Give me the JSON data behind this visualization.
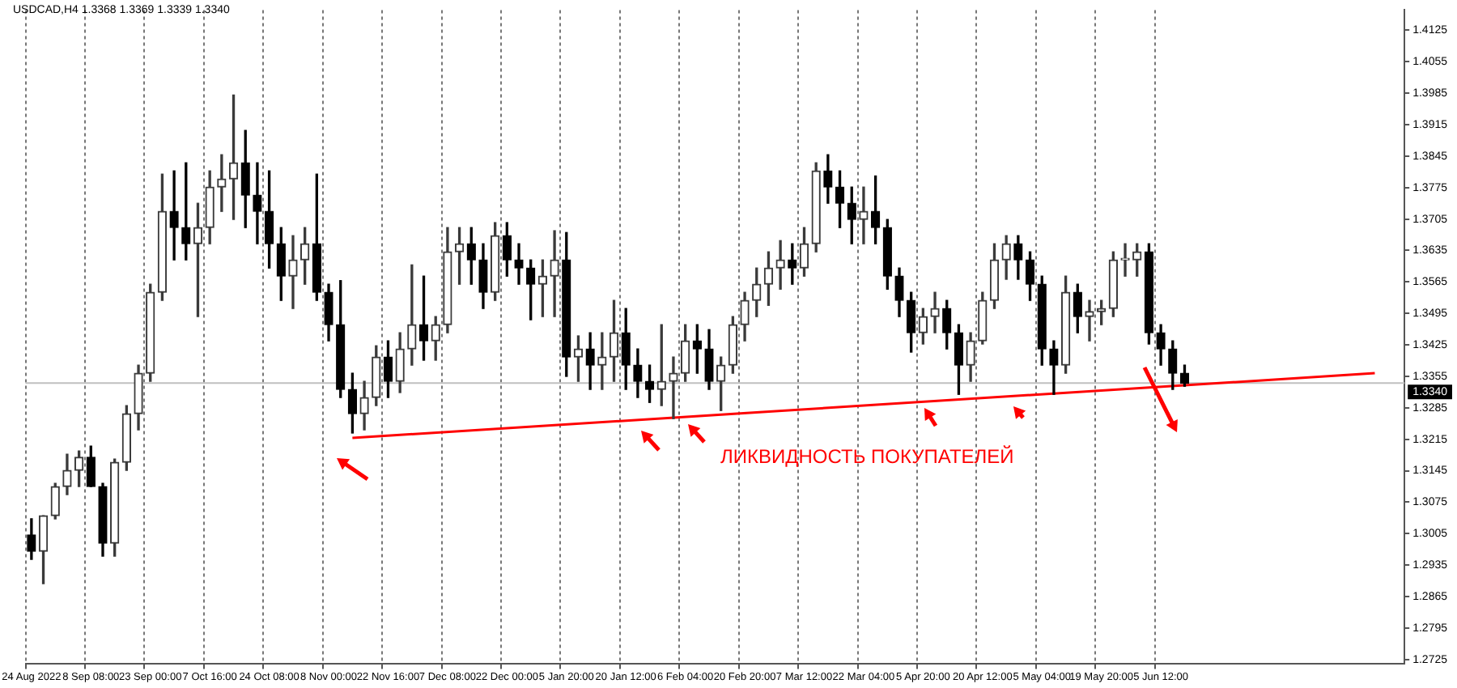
{
  "chart_data": {
    "type": "candlestick",
    "title": "USDCAD,H4  1.3368 1.3369 1.3339 1.3340",
    "colors": [
      "#000000",
      "#3a3a3a",
      "#3a3a3a",
      "#3a3a3a",
      "#3a3a3a",
      "#000000",
      "#000000",
      "#3a3a3a",
      "#3a3a3a",
      "#3a3a3a",
      "#3a3a3a",
      "#3a3a3a",
      "#000000",
      "#000000",
      "#3a3a3a",
      "#3a3a3a",
      "#3a3a3a",
      "#3a3a3a",
      "#000000",
      "#000000",
      "#000000",
      "#000000",
      "#3a3a3a",
      "#3a3a3a",
      "#000000",
      "#000000",
      "#000000",
      "#000000",
      "#3a3a3a",
      "#3a3a3a",
      "#000000",
      "#3a3a3a",
      "#3a3a3a",
      "#000000",
      "#3a3a3a",
      "#3a3a3a",
      "#3a3a3a",
      "#000000",
      "#000000",
      "#3a3a3a",
      "#000000",
      "#000000",
      "#000000",
      "#3a3a3a",
      "#3a3a3a",
      "#000000",
      "#3a3a3a",
      "#000000",
      "#3a3a3a",
      "#3a3a3a",
      "#000000",
      "#000000",
      "#000000",
      "#3a3a3a",
      "#3a3a3a",
      "#3a3a3a",
      "#000000",
      "#000000",
      "#3a3a3a",
      "#3a3a3a",
      "#3a3a3a",
      "#3a3a3a",
      "#3a3a3a",
      "#3a3a3a",
      "#000000",
      "#3a3a3a",
      "#3a3a3a",
      "#000000",
      "#000000",
      "#000000",
      "#3a3a3a",
      "#000000",
      "#000000",
      "#000000",
      "#000000",
      "#3a3a3a",
      "#3a3a3a",
      "#000000",
      "#000000",
      "#3a3a3a",
      "#3a3a3a",
      "#3a3a3a",
      "#3a3a3a",
      "#000000",
      "#000000",
      "#000000",
      "#000000",
      "#3a3a3a",
      "#000000",
      "#3a3a3a",
      "#3a3a3a",
      "#3a3a3a",
      "#3a3a3a",
      "#3a3a3a",
      "#000000",
      "#000000",
      "#000000",
      "#000000",
      null,
      null,
      null,
      null,
      null,
      null,
      null,
      null,
      null,
      null,
      null,
      null,
      null,
      null,
      null,
      null,
      null,
      null
    ],
    "categories": [
      "24 Aug 2022",
      null,
      null,
      null,
      null,
      "8 Sep 08:00",
      null,
      null,
      null,
      null,
      "23 Sep 00:00",
      null,
      null,
      null,
      null,
      "7 Oct 16:00",
      null,
      null,
      null,
      null,
      "24 Oct 08:00",
      null,
      null,
      null,
      null,
      "8 Nov 00:00",
      null,
      null,
      null,
      null,
      "22 Nov 16:00",
      null,
      null,
      null,
      null,
      "7 Dec 08:00",
      null,
      null,
      null,
      null,
      "22 Dec 00:00",
      null,
      null,
      null,
      null,
      "5 Jan 20:00",
      null,
      null,
      null,
      null,
      "20 Jan 12:00",
      null,
      null,
      null,
      null,
      "6 Feb 04:00",
      null,
      null,
      null,
      null,
      "20 Feb 20:00",
      null,
      null,
      null,
      null,
      "7 Mar 12:00",
      null,
      null,
      null,
      null,
      "22 Mar 04:00",
      null,
      null,
      null,
      null,
      "5 Apr 20:00",
      null,
      null,
      null,
      null,
      "20 Apr 12:00",
      null,
      null,
      null,
      null,
      "5 May 04:00",
      null,
      null,
      null,
      null,
      "19 May 20:00",
      null,
      null,
      null,
      null,
      "5 Jun 12:00",
      null,
      null,
      null,
      null,
      null,
      null,
      null,
      null,
      null,
      null,
      null,
      null,
      null,
      null,
      null,
      null,
      null,
      null,
      null,
      null
    ],
    "ohlc": [
      [
        1.3002,
        1.3038,
        1.2948,
        1.2966
      ],
      [
        1.2966,
        1.3045,
        1.2894,
        1.3045
      ],
      [
        1.3045,
        1.3117,
        1.3038,
        1.311
      ],
      [
        1.311,
        1.3182,
        1.3092,
        1.3146
      ],
      [
        1.3146,
        1.3189,
        1.311,
        1.3175
      ],
      [
        1.3175,
        1.32,
        1.311,
        1.311
      ],
      [
        1.311,
        1.3117,
        1.2955,
        1.2984
      ],
      [
        1.2984,
        1.3171,
        1.2955,
        1.3164
      ],
      [
        1.3164,
        1.329,
        1.3146,
        1.3272
      ],
      [
        1.3272,
        1.338,
        1.3236,
        1.3362
      ],
      [
        1.3362,
        1.356,
        1.3344,
        1.3542
      ],
      [
        1.3542,
        1.3805,
        1.3524,
        1.3722
      ],
      [
        1.3722,
        1.3812,
        1.3614,
        1.3686
      ],
      [
        1.3686,
        1.383,
        1.3614,
        1.365
      ],
      [
        1.365,
        1.374,
        1.3488,
        1.3686
      ],
      [
        1.3686,
        1.3812,
        1.365,
        1.3776
      ],
      [
        1.3776,
        1.3848,
        1.3722,
        1.3794
      ],
      [
        1.3794,
        1.3981,
        1.3704,
        1.383
      ],
      [
        1.383,
        1.3902,
        1.3686,
        1.3758
      ],
      [
        1.3758,
        1.383,
        1.365,
        1.3722
      ],
      [
        1.3722,
        1.3812,
        1.3596,
        1.365
      ],
      [
        1.365,
        1.3686,
        1.3524,
        1.3578
      ],
      [
        1.3578,
        1.3668,
        1.3506,
        1.3614
      ],
      [
        1.3614,
        1.3686,
        1.356,
        1.365
      ],
      [
        1.365,
        1.3805,
        1.3524,
        1.3542
      ],
      [
        1.3542,
        1.356,
        1.3434,
        1.347
      ],
      [
        1.347,
        1.3568,
        1.3308,
        1.3326
      ],
      [
        1.3326,
        1.3362,
        1.3229,
        1.3272
      ],
      [
        1.3272,
        1.3344,
        1.3236,
        1.3308
      ],
      [
        1.3308,
        1.3423,
        1.329,
        1.3398
      ],
      [
        1.3398,
        1.3434,
        1.3308,
        1.3344
      ],
      [
        1.3344,
        1.3452,
        1.3319,
        1.3416
      ],
      [
        1.3416,
        1.3603,
        1.338,
        1.347
      ],
      [
        1.347,
        1.3578,
        1.3391,
        1.3434
      ],
      [
        1.3434,
        1.3488,
        1.3391,
        1.347
      ],
      [
        1.347,
        1.3686,
        1.3452,
        1.3632
      ],
      [
        1.3632,
        1.3686,
        1.356,
        1.365
      ],
      [
        1.365,
        1.3686,
        1.356,
        1.3614
      ],
      [
        1.3614,
        1.365,
        1.3506,
        1.3542
      ],
      [
        1.3542,
        1.3697,
        1.3524,
        1.3668
      ],
      [
        1.3668,
        1.3697,
        1.3578,
        1.3614
      ],
      [
        1.3614,
        1.365,
        1.356,
        1.3596
      ],
      [
        1.3596,
        1.3614,
        1.3481,
        1.356
      ],
      [
        1.356,
        1.3614,
        1.3488,
        1.3578
      ],
      [
        1.3578,
        1.3679,
        1.3488,
        1.3614
      ],
      [
        1.3614,
        1.3675,
        1.3355,
        1.3398
      ],
      [
        1.3398,
        1.3445,
        1.3344,
        1.3416
      ],
      [
        1.3416,
        1.3452,
        1.3326,
        1.338
      ],
      [
        1.338,
        1.3452,
        1.3326,
        1.3398
      ],
      [
        1.3398,
        1.3524,
        1.3344,
        1.3452
      ],
      [
        1.3452,
        1.3506,
        1.3326,
        1.338
      ],
      [
        1.338,
        1.3416,
        1.3308,
        1.3344
      ],
      [
        1.3344,
        1.338,
        1.3297,
        1.3326
      ],
      [
        1.3326,
        1.347,
        1.329,
        1.3344
      ],
      [
        1.3344,
        1.3398,
        1.3261,
        1.3362
      ],
      [
        1.3362,
        1.347,
        1.3344,
        1.3434
      ],
      [
        1.3434,
        1.347,
        1.3362,
        1.3416
      ],
      [
        1.3416,
        1.3459,
        1.3326,
        1.3344
      ],
      [
        1.3344,
        1.3398,
        1.3279,
        1.338
      ],
      [
        1.338,
        1.3488,
        1.3362,
        1.347
      ],
      [
        1.347,
        1.3542,
        1.3434,
        1.3524
      ],
      [
        1.3524,
        1.3596,
        1.3488,
        1.356
      ],
      [
        1.356,
        1.3632,
        1.3513,
        1.3596
      ],
      [
        1.3596,
        1.3657,
        1.3549,
        1.3614
      ],
      [
        1.3614,
        1.365,
        1.356,
        1.3596
      ],
      [
        1.3596,
        1.3686,
        1.3578,
        1.365
      ],
      [
        1.365,
        1.383,
        1.3632,
        1.3812
      ],
      [
        1.3812,
        1.3848,
        1.374,
        1.3776
      ],
      [
        1.3776,
        1.3812,
        1.3686,
        1.374
      ],
      [
        1.374,
        1.3776,
        1.365,
        1.3704
      ],
      [
        1.3704,
        1.3776,
        1.365,
        1.3722
      ],
      [
        1.3722,
        1.3801,
        1.365,
        1.3686
      ],
      [
        1.3686,
        1.3704,
        1.3549,
        1.3578
      ],
      [
        1.3578,
        1.3596,
        1.3488,
        1.3524
      ],
      [
        1.3524,
        1.3542,
        1.3409,
        1.3452
      ],
      [
        1.3452,
        1.3506,
        1.3427,
        1.3488
      ],
      [
        1.3488,
        1.3542,
        1.3452,
        1.3506
      ],
      [
        1.3506,
        1.3524,
        1.3416,
        1.3452
      ],
      [
        1.3452,
        1.347,
        1.3315,
        1.338
      ],
      [
        1.338,
        1.3452,
        1.3344,
        1.3434
      ],
      [
        1.3434,
        1.3542,
        1.3427,
        1.3524
      ],
      [
        1.3524,
        1.365,
        1.3506,
        1.3614
      ],
      [
        1.3614,
        1.3668,
        1.3571,
        1.365
      ],
      [
        1.365,
        1.3668,
        1.3571,
        1.3614
      ],
      [
        1.3614,
        1.3632,
        1.3524,
        1.356
      ],
      [
        1.356,
        1.3578,
        1.338,
        1.3416
      ],
      [
        1.3416,
        1.3434,
        1.3315,
        1.338
      ],
      [
        1.338,
        1.3578,
        1.3362,
        1.3542
      ],
      [
        1.3542,
        1.356,
        1.3452,
        1.3488
      ],
      [
        1.3488,
        1.3524,
        1.3434,
        1.3499
      ],
      [
        1.3499,
        1.3524,
        1.347,
        1.3506
      ],
      [
        1.3506,
        1.3632,
        1.3488,
        1.3614
      ],
      [
        1.3614,
        1.365,
        1.3578,
        1.3614
      ],
      [
        1.3614,
        1.365,
        1.3578,
        1.3632
      ],
      [
        1.3632,
        1.365,
        1.3427,
        1.3452
      ],
      [
        1.3452,
        1.347,
        1.338,
        1.3416
      ],
      [
        1.3416,
        1.3434,
        1.3326,
        1.3362
      ],
      [
        1.3362,
        1.338,
        1.3333,
        1.334
      ],
      null,
      null,
      null,
      null,
      null,
      null,
      null,
      null,
      null,
      null,
      null,
      null,
      null,
      null,
      null,
      null,
      null,
      null
    ],
    "series": [
      {
        "type": "line",
        "color": "#ff0000",
        "values": [
          null,
          null,
          null,
          null,
          null,
          null,
          null,
          null,
          null,
          null,
          null,
          null,
          null,
          null,
          null,
          null,
          null,
          null,
          null,
          null,
          null,
          null,
          null,
          null,
          null,
          null,
          null,
          1.3218,
          null,
          null,
          null,
          null,
          null,
          null,
          null,
          null,
          null,
          null,
          null,
          null,
          null,
          null,
          null,
          null,
          null,
          null,
          null,
          null,
          null,
          null,
          null,
          null,
          null,
          null,
          null,
          null,
          null,
          null,
          null,
          null,
          null,
          null,
          null,
          null,
          null,
          null,
          null,
          null,
          null,
          null,
          null,
          null,
          null,
          null,
          null,
          null,
          null,
          null,
          null,
          null,
          null,
          null,
          null,
          null,
          null,
          null,
          null,
          null,
          null,
          null,
          null,
          null,
          null,
          null,
          null,
          null,
          null,
          null,
          null,
          null,
          null,
          null,
          null,
          null,
          null,
          null,
          null,
          null,
          null,
          null,
          null,
          null,
          null,
          1.3362,
          null,
          null
        ]
      }
    ],
    "ylim": [
      1.2715,
      1.417
    ],
    "yticks": [
      1.2725,
      1.2795,
      1.2865,
      1.2935,
      1.3005,
      1.3075,
      1.3145,
      1.3215,
      1.3285,
      1.3355,
      1.3425,
      1.3495,
      1.3565,
      1.3635,
      1.3705,
      1.3775,
      1.3845,
      1.3915,
      1.3985,
      1.4055,
      1.4125
    ],
    "ref_lines": [
      {
        "axis": "y",
        "value": 1.334,
        "label": "1.3340",
        "color": "#c0c0c0"
      }
    ],
    "annotations": [
      "ЛИКВИДНОСТЬ ПОКУПАТЕЛЕЙ"
    ],
    "grid": "x",
    "legend": false
  }
}
